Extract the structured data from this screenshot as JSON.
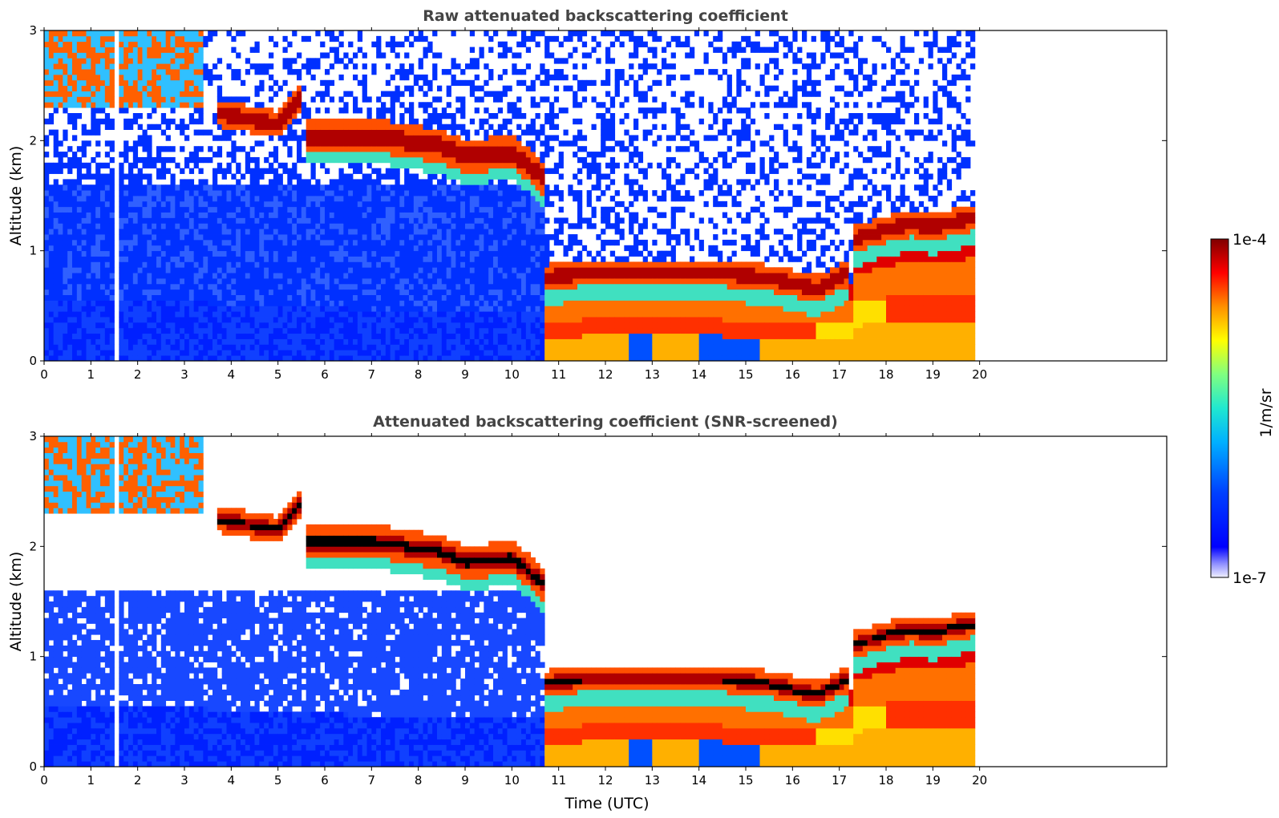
{
  "chart_data": {
    "type": "heatmap",
    "panels": [
      {
        "title": "Raw attenuated backscattering coefficient",
        "xlabel": "",
        "ylabel": "Altitude (km)",
        "xlim": [
          0,
          24
        ],
        "ylim": [
          0,
          3
        ],
        "x_ticks": [
          "0",
          "1",
          "2",
          "3",
          "4",
          "5",
          "6",
          "7",
          "8",
          "9",
          "10",
          "11",
          "12",
          "13",
          "14",
          "15",
          "16",
          "17",
          "18",
          "19",
          "20"
        ],
        "y_ticks": [
          "0",
          "1",
          "2",
          "3"
        ],
        "data_end_hour": 19.9,
        "gap_hour": 1.5,
        "snr_screened": false
      },
      {
        "title": "Attenuated backscattering coefficient (SNR-screened)",
        "xlabel": "Time (UTC)",
        "ylabel": "Altitude (km)",
        "xlim": [
          0,
          24
        ],
        "ylim": [
          0,
          3
        ],
        "x_ticks": [
          "0",
          "1",
          "2",
          "3",
          "4",
          "5",
          "6",
          "7",
          "8",
          "9",
          "10",
          "11",
          "12",
          "13",
          "14",
          "15",
          "16",
          "17",
          "18",
          "19",
          "20"
        ],
        "y_ticks": [
          "0",
          "1",
          "2",
          "3"
        ],
        "data_end_hour": 19.9,
        "gap_hour": 1.5,
        "snr_screened": true
      }
    ],
    "colorbar": {
      "label": "1/m/sr",
      "min_label": "1e-7",
      "max_label": "1e-4",
      "log_min": -7,
      "log_max": -4,
      "colormap": [
        "#000080",
        "#0000ff",
        "#00a0ff",
        "#20e0e0",
        "#80ff80",
        "#ffff00",
        "#ff8000",
        "#ff0000",
        "#800000"
      ]
    },
    "features": {
      "boundary_layer_top_km": [
        [
          0,
          0.55
        ],
        [
          2,
          0.55
        ],
        [
          5,
          0.5
        ],
        [
          8,
          0.45
        ],
        [
          10,
          0.45
        ],
        [
          10.6,
          0.45
        ]
      ],
      "cloud_layers": [
        {
          "segment": [
            [
              3.7,
              2.25
            ],
            [
              5.0,
              2.15
            ],
            [
              5.5,
              2.4
            ]
          ],
          "thickness_km": 0.12
        },
        {
          "segment": [
            [
              5.6,
              2.05
            ],
            [
              7.0,
              2.05
            ],
            [
              8.5,
              1.95
            ],
            [
              9.0,
              1.85
            ],
            [
              10.0,
              1.9
            ],
            [
              10.7,
              1.65
            ]
          ],
          "thickness_km": 0.15
        },
        {
          "segment": [
            [
              10.7,
              0.75
            ],
            [
              11.5,
              0.8
            ],
            [
              13.0,
              0.8
            ],
            [
              14.5,
              0.8
            ],
            [
              15.5,
              0.75
            ],
            [
              16.5,
              0.65
            ],
            [
              17.2,
              0.8
            ]
          ],
          "thickness_km": 0.12
        },
        {
          "segment": [
            [
              17.3,
              1.1
            ],
            [
              18.0,
              1.2
            ],
            [
              18.5,
              1.25
            ],
            [
              19.0,
              1.22
            ],
            [
              19.9,
              1.3
            ]
          ],
          "thickness_km": 0.12
        }
      ],
      "aerosol_layer": {
        "start_hour": 10.7,
        "end_hour": 19.9
      }
    }
  }
}
